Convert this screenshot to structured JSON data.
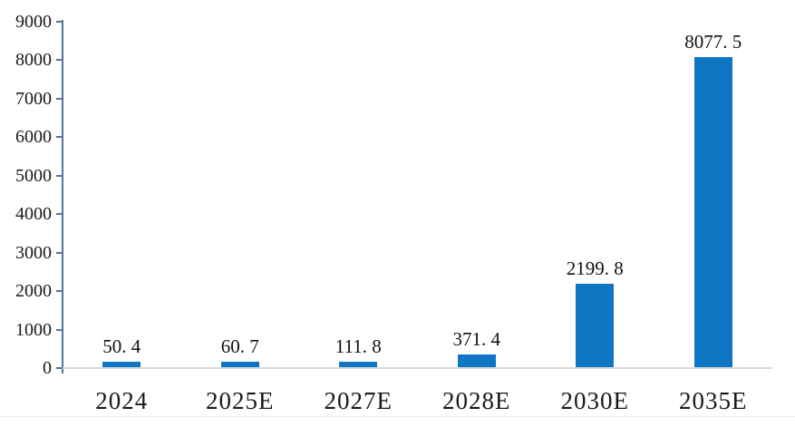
{
  "chart_data": {
    "type": "bar",
    "title": "",
    "xlabel": "",
    "ylabel": "",
    "categories": [
      "2024",
      "2025E",
      "2027E",
      "2028E",
      "2030E",
      "2035E"
    ],
    "values": [
      50.4,
      60.7,
      111.8,
      371.4,
      2199.8,
      8077.5
    ],
    "value_labels": [
      "50. 4",
      "60. 7",
      "111. 8",
      "371. 4",
      "2199. 8",
      "8077. 5"
    ],
    "ylim": [
      0,
      9000
    ],
    "ytick_interval": 1000,
    "yticks": [
      0,
      1000,
      2000,
      3000,
      4000,
      5000,
      6000,
      7000,
      8000,
      9000
    ],
    "ytick_labels": [
      "0",
      "1000",
      "2000",
      "3000",
      "4000",
      "5000",
      "6000",
      "7000",
      "8000",
      "9000"
    ],
    "grid": "off",
    "legend": "none",
    "data_labels": "on",
    "colors": {
      "bar": "#0F76C4",
      "axis": "#54749E",
      "baseline": "#D9D9D9",
      "text": "#1a1a1a",
      "background": "#ffffff"
    }
  }
}
